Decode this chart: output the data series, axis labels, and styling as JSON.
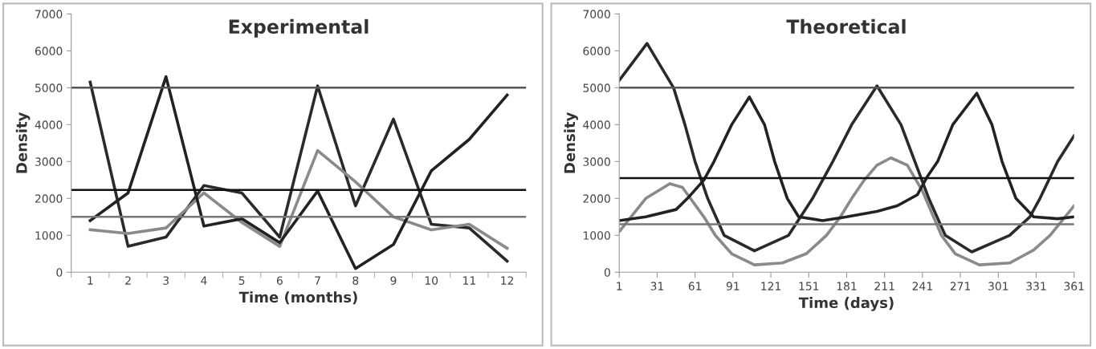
{
  "chart_data": [
    {
      "type": "line",
      "title": "Experimental",
      "xlabel": "Time (months)",
      "ylabel": "Density",
      "categories": [
        "1",
        "2",
        "3",
        "4",
        "5",
        "6",
        "7",
        "8",
        "9",
        "10",
        "11",
        "12"
      ],
      "ylim": [
        0,
        7000
      ],
      "yticks": [
        0,
        1000,
        2000,
        3000,
        4000,
        5000,
        6000,
        7000
      ],
      "grid": false,
      "marker": "none",
      "line_style": "solid",
      "series": [
        {
          "color": "#2a2a2a",
          "values": [
            5150,
            700,
            950,
            2350,
            2150,
            950,
            5050,
            1800,
            4150,
            1300,
            1200,
            300
          ]
        },
        {
          "color": "#8a8a8a",
          "values": [
            1150,
            1050,
            1200,
            2150,
            1350,
            700,
            3300,
            2450,
            1500,
            1150,
            1300,
            650
          ]
        },
        {
          "color": "#222222",
          "values": [
            1400,
            2150,
            5300,
            1250,
            1450,
            800,
            2200,
            100,
            750,
            2750,
            3600,
            4800
          ]
        }
      ],
      "ref_lines": [
        {
          "axis": "y",
          "value": 5000,
          "color": "#555555"
        },
        {
          "axis": "y",
          "value": 2230,
          "color": "#111111"
        },
        {
          "axis": "y",
          "value": 1500,
          "color": "#777777"
        }
      ]
    },
    {
      "type": "line",
      "title": "Theoretical",
      "xlabel": "Time (days)",
      "ylabel": "Density",
      "xlim": [
        1,
        361
      ],
      "xticks": [
        1,
        31,
        61,
        91,
        121,
        151,
        181,
        211,
        241,
        271,
        301,
        331,
        361
      ],
      "ylim": [
        0,
        7000
      ],
      "yticks": [
        0,
        1000,
        2000,
        3000,
        4000,
        5000,
        6000,
        7000
      ],
      "grid": false,
      "marker": "none",
      "line_style": "solid",
      "series": [
        {
          "color": "#2a2a2a",
          "x": [
            1,
            23,
            44,
            53,
            61,
            71,
            84,
            108,
            135,
            154,
            170,
            185,
            205,
            224,
            235,
            246,
            259,
            280,
            310,
            326,
            334,
            348,
            361
          ],
          "values": [
            5200,
            6200,
            5000,
            4000,
            3000,
            2000,
            1000,
            580,
            1000,
            2000,
            3000,
            4000,
            5050,
            4000,
            3000,
            2000,
            1000,
            550,
            1000,
            1500,
            2000,
            3000,
            3700
          ]
        },
        {
          "color": "#8a8a8a",
          "x": [
            1,
            22,
            41,
            51,
            68,
            77,
            90,
            108,
            130,
            149,
            165,
            176,
            185,
            195,
            205,
            216,
            229,
            241,
            256,
            267,
            286,
            310,
            329,
            342,
            361
          ],
          "values": [
            1100,
            2000,
            2400,
            2300,
            1500,
            1000,
            500,
            200,
            250,
            500,
            1000,
            1500,
            2000,
            2500,
            2900,
            3100,
            2900,
            2200,
            1000,
            500,
            200,
            250,
            600,
            1000,
            1800
          ]
        },
        {
          "color": "#222222",
          "x": [
            1,
            22,
            46,
            55,
            68,
            76,
            90,
            104,
            116,
            124,
            134,
            143,
            162,
            181,
            205,
            221,
            237,
            245,
            253,
            265,
            284,
            296,
            304,
            315,
            329,
            348,
            361
          ],
          "values": [
            1400,
            1500,
            1700,
            2000,
            2500,
            3000,
            4000,
            4750,
            4000,
            3000,
            2000,
            1500,
            1400,
            1500,
            1650,
            1800,
            2100,
            2600,
            3000,
            4000,
            4850,
            4000,
            3000,
            2000,
            1500,
            1450,
            1500
          ]
        }
      ],
      "ref_lines": [
        {
          "axis": "y",
          "value": 5000,
          "color": "#555555"
        },
        {
          "axis": "y",
          "value": 2550,
          "color": "#111111"
        },
        {
          "axis": "y",
          "value": 1300,
          "color": "#777777"
        }
      ]
    }
  ]
}
